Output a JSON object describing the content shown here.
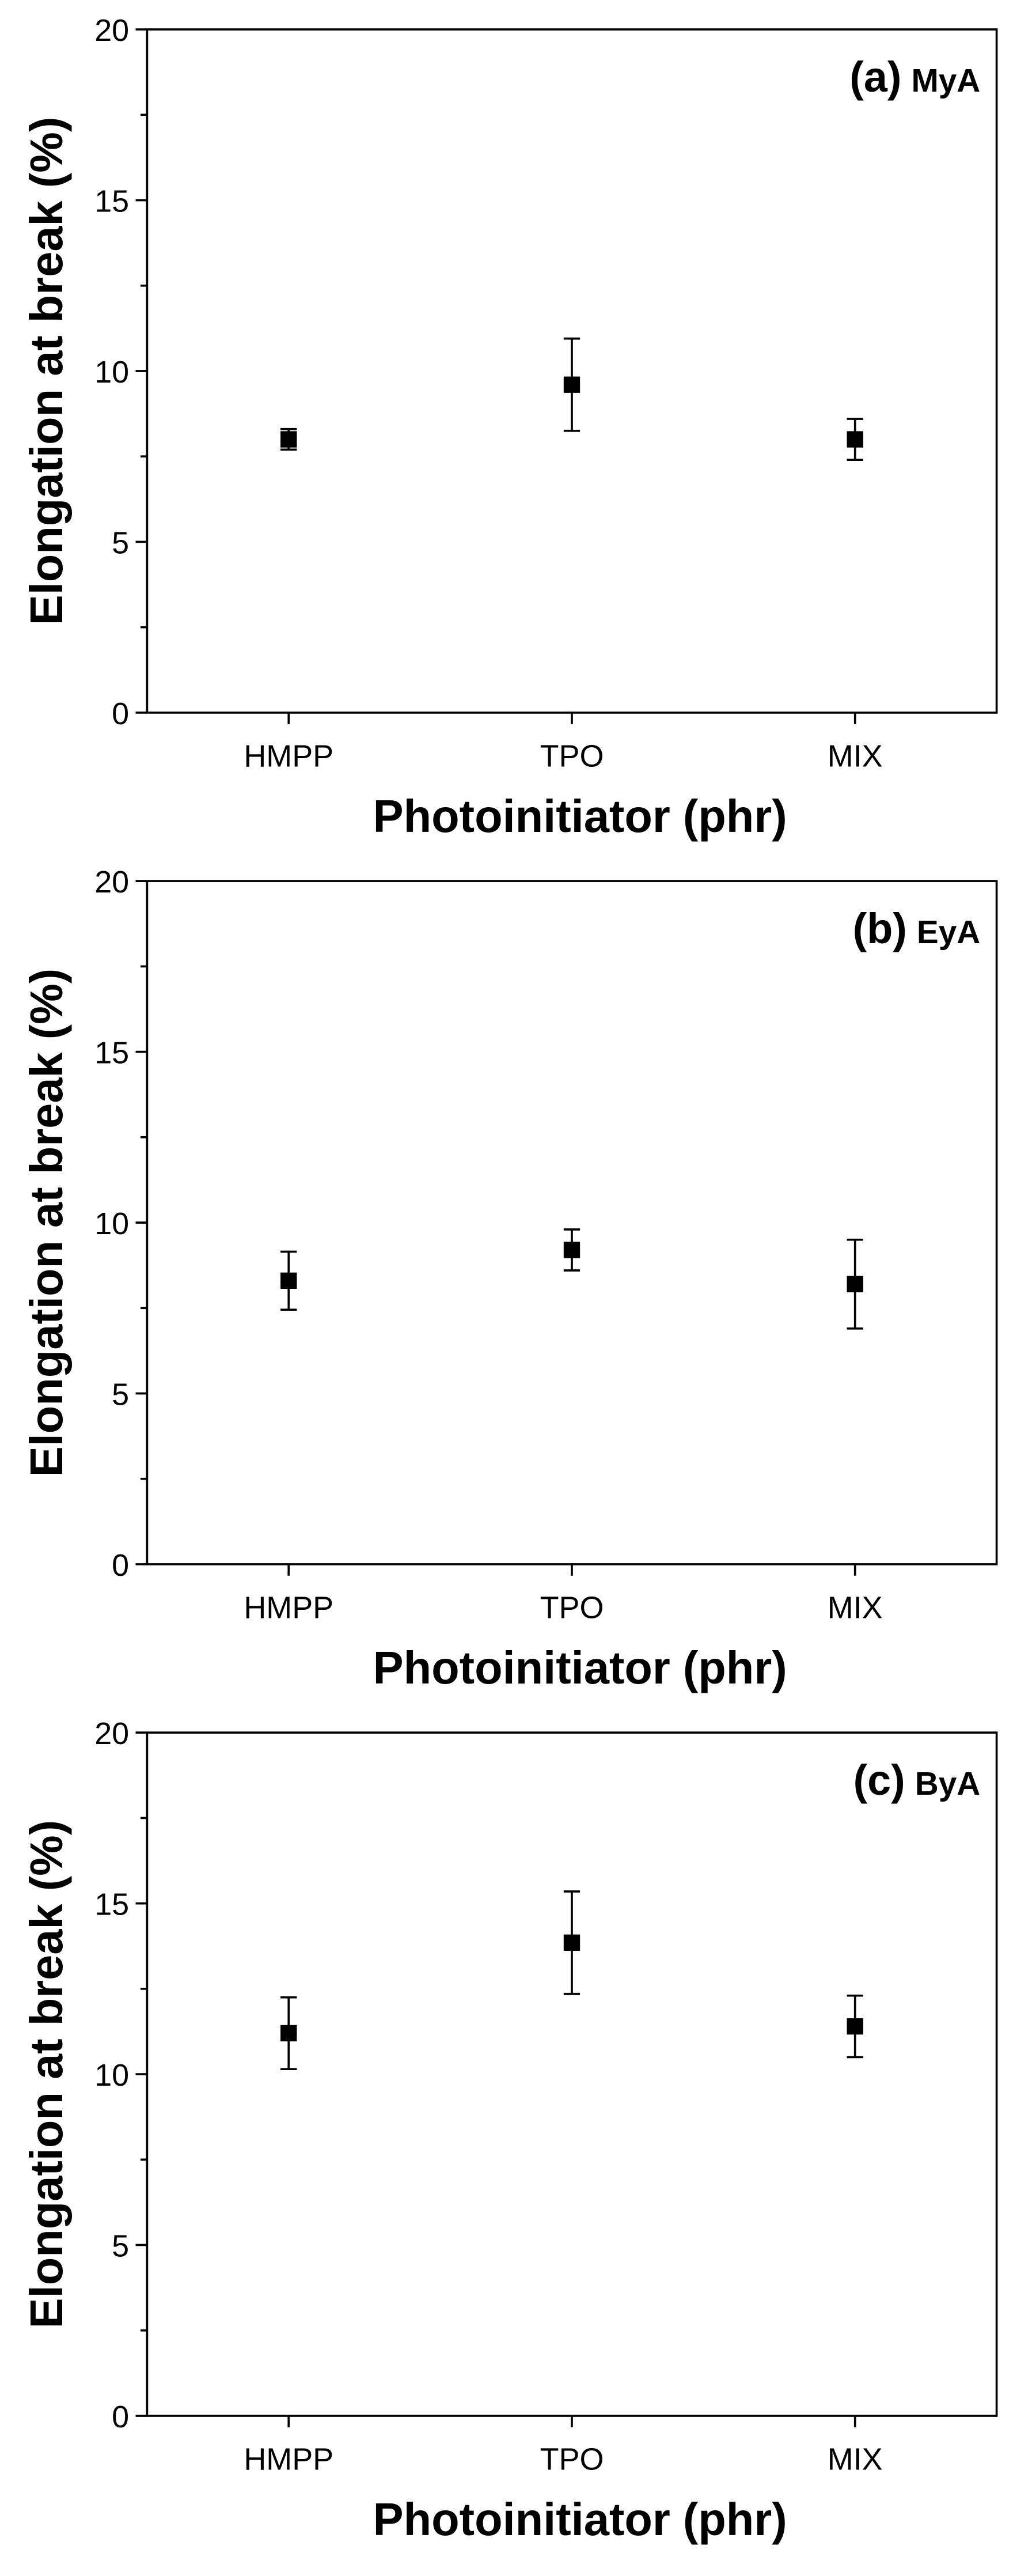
{
  "chart_data": [
    {
      "type": "scatter",
      "panel_label": "(a)",
      "sample": "MyA",
      "xlabel": "Photoinitiator (phr)",
      "ylabel": "Elongation at break (%)",
      "categories": [
        "HMPP",
        "TPO",
        "MIX"
      ],
      "series": [
        {
          "color": "#000000",
          "values": [
            8.0,
            9.6,
            8.0
          ],
          "errors": [
            0.3,
            1.35,
            0.6
          ]
        }
      ],
      "ylim": [
        0,
        20
      ],
      "yticks": [
        0,
        5,
        10,
        15,
        20
      ],
      "yminor": [
        2.5,
        7.5,
        12.5,
        17.5
      ]
    },
    {
      "type": "scatter",
      "panel_label": "(b)",
      "sample": "EyA",
      "xlabel": "Photoinitiator (phr)",
      "ylabel": "Elongation at break (%)",
      "categories": [
        "HMPP",
        "TPO",
        "MIX"
      ],
      "series": [
        {
          "color": "#000000",
          "values": [
            8.3,
            9.2,
            8.2
          ],
          "errors": [
            0.85,
            0.6,
            1.3
          ]
        }
      ],
      "ylim": [
        0,
        20
      ],
      "yticks": [
        0,
        5,
        10,
        15,
        20
      ],
      "yminor": [
        2.5,
        7.5,
        12.5,
        17.5
      ]
    },
    {
      "type": "scatter",
      "panel_label": "(c)",
      "sample": "ByA",
      "xlabel": "Photoinitiator (phr)",
      "ylabel": "Elongation at break (%)",
      "categories": [
        "HMPP",
        "TPO",
        "MIX"
      ],
      "series": [
        {
          "color": "#000000",
          "values": [
            11.2,
            13.85,
            11.4
          ],
          "errors": [
            1.05,
            1.5,
            0.9
          ]
        }
      ],
      "ylim": [
        0,
        20
      ],
      "yticks": [
        0,
        5,
        10,
        15,
        20
      ],
      "yminor": [
        2.5,
        7.5,
        12.5,
        17.5
      ]
    }
  ]
}
